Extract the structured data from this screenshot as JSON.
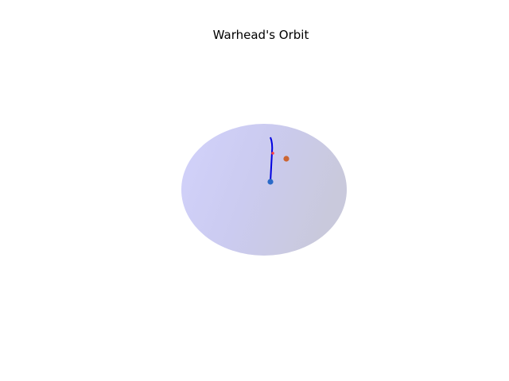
{
  "chart_data": {
    "type": "scatter",
    "title": "Warhead's Orbit",
    "axes_visible": false,
    "grid": false,
    "legend": "none",
    "background_color": "#ffffff",
    "sphere": {
      "description_type": "shaded-globe",
      "color": "#ccccf8"
    },
    "series": [
      {
        "kind": "trajectory-line",
        "color": "#0000e0",
        "points": [
          {
            "label_x": 0,
            "label_y": 0
          }
        ]
      },
      {
        "kind": "start-marker",
        "color": "#2a6ac8"
      },
      {
        "kind": "target-marker",
        "color": "#cc6633"
      },
      {
        "kind": "impact-mark",
        "color": "#ff4040"
      }
    ]
  }
}
